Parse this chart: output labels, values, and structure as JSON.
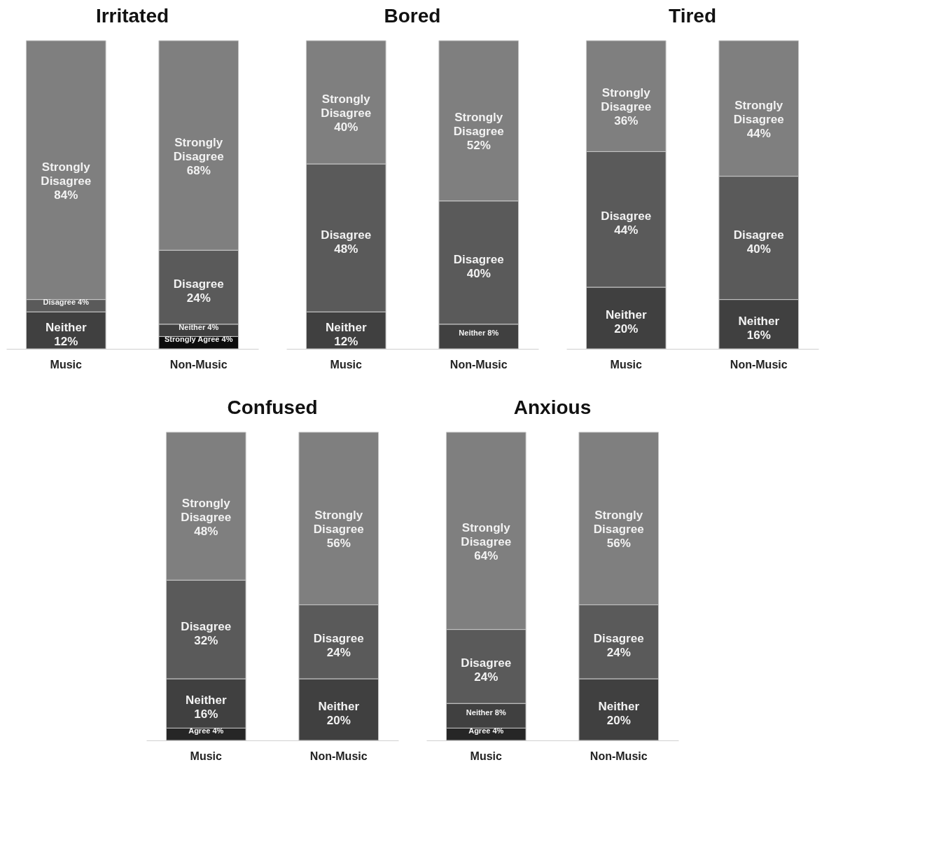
{
  "chart_data": [
    {
      "type": "bar",
      "title": "Irritated",
      "categories": [
        "Music",
        "Non-Music"
      ],
      "stacked": true,
      "ylim": [
        0,
        100
      ],
      "tick_labels": "x",
      "series": [
        {
          "name": "Strongly Agree",
          "color": "#0d0d0d",
          "values": [
            null,
            4
          ],
          "value_labels": [
            null,
            "4%"
          ]
        },
        {
          "name": "Neither",
          "color": "#404040",
          "values": [
            12,
            4
          ],
          "value_labels": [
            "12%",
            "4%"
          ]
        },
        {
          "name": "Disagree",
          "color": "#5a5a5a",
          "values": [
            4,
            24
          ],
          "value_labels": [
            "4%",
            "24%"
          ]
        },
        {
          "name": "Strongly Disagree",
          "color": "#7f7f7f",
          "values": [
            84,
            68
          ],
          "value_labels": [
            "84%",
            "68%"
          ]
        }
      ]
    },
    {
      "type": "bar",
      "title": "Bored",
      "categories": [
        "Music",
        "Non-Music"
      ],
      "stacked": true,
      "ylim": [
        0,
        100
      ],
      "tick_labels": "x",
      "series": [
        {
          "name": "Neither",
          "color": "#404040",
          "values": [
            12,
            8
          ],
          "value_labels": [
            "12%",
            "8%"
          ]
        },
        {
          "name": "Disagree",
          "color": "#5a5a5a",
          "values": [
            48,
            40
          ],
          "value_labels": [
            "48%",
            "40%"
          ]
        },
        {
          "name": "Strongly Disagree",
          "color": "#7f7f7f",
          "values": [
            40,
            52
          ],
          "value_labels": [
            "40%",
            "52%"
          ]
        }
      ]
    },
    {
      "type": "bar",
      "title": "Tired",
      "categories": [
        "Music",
        "Non-Music"
      ],
      "stacked": true,
      "ylim": [
        0,
        100
      ],
      "tick_labels": "x",
      "series": [
        {
          "name": "Neither",
          "color": "#404040",
          "values": [
            20,
            16
          ],
          "value_labels": [
            "20%",
            "16%"
          ]
        },
        {
          "name": "Disagree",
          "color": "#5a5a5a",
          "values": [
            44,
            40
          ],
          "value_labels": [
            "44%",
            "40%"
          ]
        },
        {
          "name": "Strongly Disagree",
          "color": "#7f7f7f",
          "values": [
            36,
            44
          ],
          "value_labels": [
            "36%",
            "44%"
          ]
        }
      ]
    },
    {
      "type": "bar",
      "title": "Confused",
      "categories": [
        "Music",
        "Non-Music"
      ],
      "stacked": true,
      "ylim": [
        0,
        100
      ],
      "tick_labels": "x",
      "series": [
        {
          "name": "Agree",
          "color": "#262626",
          "values": [
            4,
            null
          ],
          "value_labels": [
            "4%",
            null
          ]
        },
        {
          "name": "Neither",
          "color": "#404040",
          "values": [
            16,
            20
          ],
          "value_labels": [
            "16%",
            "20%"
          ]
        },
        {
          "name": "Disagree",
          "color": "#5a5a5a",
          "values": [
            32,
            24
          ],
          "value_labels": [
            "32%",
            "24%"
          ]
        },
        {
          "name": "Strongly Disagree",
          "color": "#7f7f7f",
          "values": [
            48,
            56
          ],
          "value_labels": [
            "48%",
            "56%"
          ]
        }
      ]
    },
    {
      "type": "bar",
      "title": "Anxious",
      "categories": [
        "Music",
        "Non-Music"
      ],
      "stacked": true,
      "ylim": [
        0,
        100
      ],
      "tick_labels": "x",
      "series": [
        {
          "name": "Agree",
          "color": "#262626",
          "values": [
            4,
            null
          ],
          "value_labels": [
            "4%",
            null
          ]
        },
        {
          "name": "Neither",
          "color": "#404040",
          "values": [
            8,
            20
          ],
          "value_labels": [
            "8%",
            "20%"
          ]
        },
        {
          "name": "Disagree",
          "color": "#5a5a5a",
          "values": [
            24,
            24
          ],
          "value_labels": [
            "24%",
            "24%"
          ]
        },
        {
          "name": "Strongly Disagree",
          "color": "#7f7f7f",
          "values": [
            64,
            56
          ],
          "value_labels": [
            "64%",
            "56%"
          ]
        }
      ]
    }
  ]
}
